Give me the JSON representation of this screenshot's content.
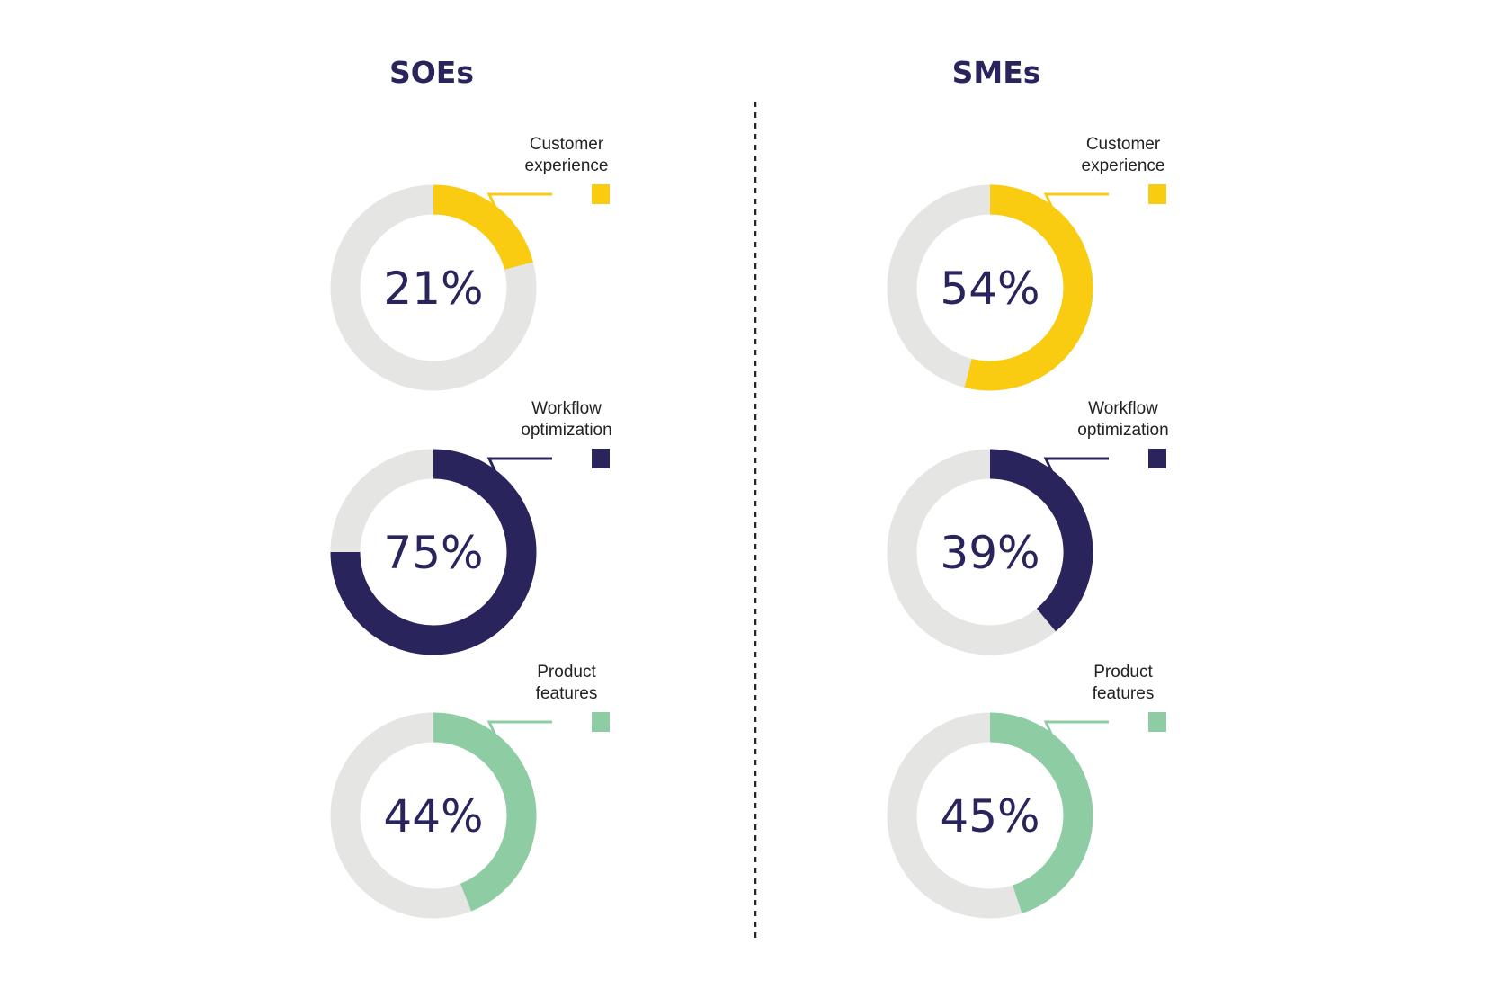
{
  "chart_data": [
    {
      "type": "pie",
      "group": "SOEs",
      "categories": [
        "Customer experience",
        "Workflow optimization",
        "Product features"
      ],
      "labels": [
        [
          "Customer",
          "experience"
        ],
        [
          "Workflow",
          "optimization"
        ],
        [
          "Product",
          "features"
        ]
      ],
      "values": [
        21,
        75,
        44
      ],
      "value_labels": [
        "21%",
        "75%",
        "44%"
      ]
    },
    {
      "type": "pie",
      "group": "SMEs",
      "categories": [
        "Customer experience",
        "Workflow optimization",
        "Product features"
      ],
      "labels": [
        [
          "Customer",
          "experience"
        ],
        [
          "Workflow",
          "optimization"
        ],
        [
          "Product",
          "features"
        ]
      ],
      "values": [
        54,
        39,
        45
      ],
      "value_labels": [
        "54%",
        "39%",
        "45%"
      ]
    }
  ],
  "colors": {
    "customer_experience": "#f9cb11",
    "workflow_optimization": "#29245c",
    "product_features": "#8ecda4",
    "track": "#e5e5e3",
    "text": "#29245c",
    "divider": "#222222"
  }
}
